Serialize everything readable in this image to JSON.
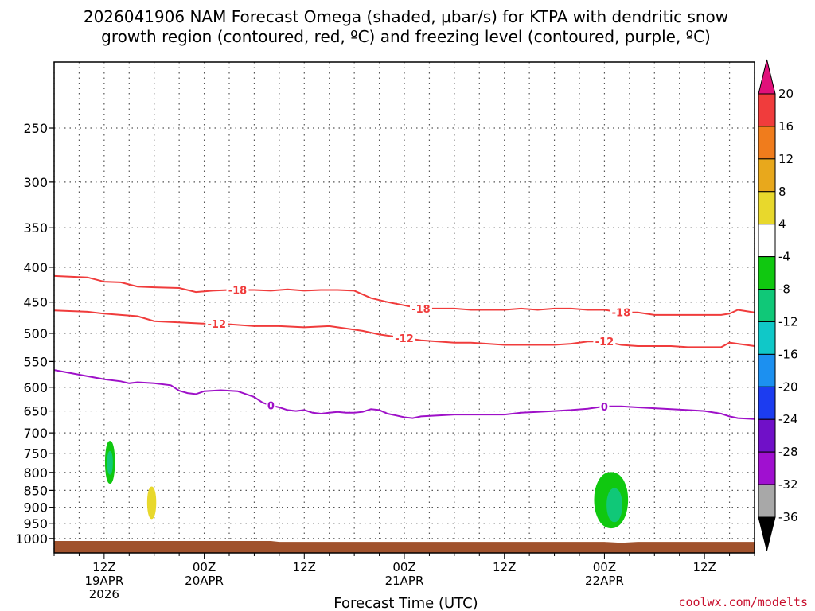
{
  "title": {
    "line1": "2026041906 NAM Forecast Omega (shaded, μbar/s) for KTPA with dendritic snow",
    "line2": "growth region (contoured, red, ºC) and freezing level (contoured, purple, ºC)"
  },
  "credit": "coolwx.com/modelts",
  "chart_data": {
    "type": "time-height contour",
    "title": "2026041906 NAM Forecast Omega (shaded, μbar/s) for KTPA with dendritic snow growth region (contoured, red, ºC) and freezing level (contoured, purple, ºC)",
    "xlabel": "Forecast Time (UTC)",
    "ylabel": "",
    "x_unit": "forecast hour from 2026041906",
    "xlim": [
      0,
      84
    ],
    "y_unit": "hPa",
    "ylim": [
      1050,
      200
    ],
    "y_ticks": [
      250,
      300,
      350,
      400,
      450,
      500,
      550,
      600,
      650,
      700,
      750,
      800,
      850,
      900,
      950,
      1000
    ],
    "x_ticks": [
      {
        "hour": 6,
        "lines": [
          "12Z",
          "19APR",
          "2026"
        ]
      },
      {
        "hour": 18,
        "lines": [
          "00Z",
          "20APR"
        ]
      },
      {
        "hour": 30,
        "lines": [
          "12Z"
        ]
      },
      {
        "hour": 42,
        "lines": [
          "00Z",
          "21APR"
        ]
      },
      {
        "hour": 54,
        "lines": [
          "12Z"
        ]
      },
      {
        "hour": 66,
        "lines": [
          "00Z",
          "22APR"
        ]
      },
      {
        "hour": 78,
        "lines": [
          "12Z"
        ]
      }
    ],
    "colorbar": {
      "labels": [
        "20",
        "16",
        "12",
        "8",
        "4",
        "-4",
        "-8",
        "-12",
        "-16",
        "-20",
        "-24",
        "-28",
        "-32",
        "-36"
      ],
      "bins": [
        {
          "range": "16 to 20",
          "color": "#f03c3c"
        },
        {
          "range": "12 to 16",
          "color": "#f07c1c"
        },
        {
          "range": "8 to 12",
          "color": "#e8a81c"
        },
        {
          "range": "4 to 8",
          "color": "#e8d82c"
        },
        {
          "range": "-4 to 4",
          "color": "#ffffff"
        },
        {
          "range": "-8 to -4",
          "color": "#10c810"
        },
        {
          "range": "-12 to -8",
          "color": "#10c878"
        },
        {
          "range": "-16 to -12",
          "color": "#10c8c8"
        },
        {
          "range": "-20 to -16",
          "color": "#1c90f0"
        },
        {
          "range": "-24 to -20",
          "color": "#1c3cf0"
        },
        {
          "range": "-28 to -24",
          "color": "#7010c8"
        },
        {
          "range": "-32 to -28",
          "color": "#a010d0"
        },
        {
          "range": "-36 to -32",
          "color": "#a8a8a8"
        }
      ],
      "top_triangle_color": "#e0107a",
      "bottom_triangle_color": "#000000"
    },
    "series": [
      {
        "name": "-18 ºC isotherm",
        "color": "#f03c3c",
        "label": "-18",
        "label_hours": [
          22,
          44,
          68
        ],
        "points": [
          [
            0,
            412
          ],
          [
            4,
            414
          ],
          [
            6,
            420
          ],
          [
            8,
            421
          ],
          [
            10,
            427
          ],
          [
            12,
            428
          ],
          [
            15,
            429
          ],
          [
            17,
            435
          ],
          [
            19,
            433
          ],
          [
            21,
            432
          ],
          [
            24,
            432
          ],
          [
            26,
            433
          ],
          [
            28,
            431
          ],
          [
            30,
            433
          ],
          [
            32,
            432
          ],
          [
            34,
            432
          ],
          [
            36,
            433
          ],
          [
            38,
            444
          ],
          [
            40,
            450
          ],
          [
            42,
            455
          ],
          [
            44,
            460
          ],
          [
            46,
            460
          ],
          [
            48,
            460
          ],
          [
            50,
            462
          ],
          [
            52,
            462
          ],
          [
            54,
            462
          ],
          [
            56,
            460
          ],
          [
            58,
            462
          ],
          [
            60,
            460
          ],
          [
            62,
            460
          ],
          [
            64,
            462
          ],
          [
            66,
            462
          ],
          [
            68,
            466
          ],
          [
            70,
            466
          ],
          [
            72,
            470
          ],
          [
            74,
            470
          ],
          [
            76,
            470
          ],
          [
            78,
            470
          ],
          [
            80,
            470
          ],
          [
            81,
            468
          ],
          [
            82,
            462
          ],
          [
            84,
            466
          ]
        ]
      },
      {
        "name": "-12 ºC isotherm",
        "color": "#f03c3c",
        "label": "-12",
        "label_hours": [
          19.5,
          42,
          66
        ],
        "points": [
          [
            0,
            463
          ],
          [
            4,
            465
          ],
          [
            6,
            468
          ],
          [
            8,
            470
          ],
          [
            10,
            472
          ],
          [
            12,
            480
          ],
          [
            15,
            482
          ],
          [
            18,
            484
          ],
          [
            21,
            485
          ],
          [
            24,
            488
          ],
          [
            27,
            488
          ],
          [
            30,
            490
          ],
          [
            33,
            488
          ],
          [
            35,
            492
          ],
          [
            37,
            496
          ],
          [
            39,
            502
          ],
          [
            41,
            506
          ],
          [
            42,
            508
          ],
          [
            44,
            512
          ],
          [
            46,
            514
          ],
          [
            48,
            516
          ],
          [
            50,
            516
          ],
          [
            52,
            518
          ],
          [
            54,
            520
          ],
          [
            56,
            520
          ],
          [
            58,
            520
          ],
          [
            60,
            520
          ],
          [
            62,
            518
          ],
          [
            64,
            514
          ],
          [
            66,
            514
          ],
          [
            68,
            520
          ],
          [
            70,
            522
          ],
          [
            72,
            522
          ],
          [
            74,
            522
          ],
          [
            76,
            524
          ],
          [
            78,
            524
          ],
          [
            80,
            524
          ],
          [
            81,
            516
          ],
          [
            82,
            518
          ],
          [
            84,
            522
          ]
        ]
      },
      {
        "name": "0 ºC freezing level",
        "color": "#9e10c8",
        "label": "0",
        "label_hours": [
          26,
          66
        ],
        "points": [
          [
            0,
            566
          ],
          [
            2,
            572
          ],
          [
            4,
            578
          ],
          [
            6,
            584
          ],
          [
            8,
            588
          ],
          [
            9,
            592
          ],
          [
            10,
            590
          ],
          [
            12,
            592
          ],
          [
            14,
            596
          ],
          [
            15,
            607
          ],
          [
            16,
            612
          ],
          [
            17,
            614
          ],
          [
            18,
            608
          ],
          [
            20,
            606
          ],
          [
            22,
            608
          ],
          [
            24,
            620
          ],
          [
            25,
            632
          ],
          [
            26,
            638
          ],
          [
            27,
            642
          ],
          [
            28,
            648
          ],
          [
            29,
            650
          ],
          [
            30,
            648
          ],
          [
            31,
            654
          ],
          [
            32,
            656
          ],
          [
            33,
            654
          ],
          [
            34,
            652
          ],
          [
            35,
            654
          ],
          [
            36,
            654
          ],
          [
            37,
            652
          ],
          [
            38,
            646
          ],
          [
            39,
            648
          ],
          [
            40,
            656
          ],
          [
            41,
            660
          ],
          [
            42,
            664
          ],
          [
            43,
            666
          ],
          [
            44,
            662
          ],
          [
            46,
            660
          ],
          [
            48,
            658
          ],
          [
            50,
            658
          ],
          [
            52,
            658
          ],
          [
            54,
            658
          ],
          [
            56,
            654
          ],
          [
            58,
            652
          ],
          [
            60,
            650
          ],
          [
            62,
            648
          ],
          [
            64,
            645
          ],
          [
            66,
            640
          ],
          [
            68,
            640
          ],
          [
            70,
            642
          ],
          [
            72,
            644
          ],
          [
            74,
            646
          ],
          [
            76,
            648
          ],
          [
            78,
            650
          ],
          [
            80,
            656
          ],
          [
            81,
            662
          ],
          [
            82,
            666
          ],
          [
            84,
            668
          ]
        ]
      }
    ],
    "omega_regions": [
      {
        "name": "omega -8 to -4 near 19APR 12Z",
        "color": "#10c810",
        "center_hour": 6.7,
        "center_hPa": 765,
        "half_width_hours": 0.55,
        "top_hPa": 720,
        "bottom_hPa": 830
      },
      {
        "name": "omega -12 to -8 core near 19APR 12Z",
        "color": "#10c878",
        "center_hour": 6.7,
        "center_hPa": 775,
        "half_width_hours": 0.3,
        "top_hPa": 745,
        "bottom_hPa": 805
      },
      {
        "name": "omega 4 to 8 near 19APR 17Z",
        "color": "#e8d82c",
        "center_hour": 11.7,
        "center_hPa": 885,
        "half_width_hours": 0.5,
        "top_hPa": 840,
        "bottom_hPa": 935
      },
      {
        "name": "omega -8 to -4 near 22APR 00Z",
        "color": "#10c810",
        "center_hour": 66.8,
        "center_hPa": 880,
        "half_width_hours": 2.0,
        "top_hPa": 800,
        "bottom_hPa": 965
      },
      {
        "name": "omega -12 to -8 core near 22APR 00Z",
        "color": "#10c878",
        "center_hour": 67.2,
        "center_hPa": 890,
        "half_width_hours": 0.9,
        "top_hPa": 845,
        "bottom_hPa": 945
      }
    ],
    "terrain": {
      "color": "#a0522d",
      "surface_hPa": [
        [
          0,
          1010
        ],
        [
          26,
          1010
        ],
        [
          27,
          1013
        ],
        [
          66,
          1013
        ],
        [
          68,
          1016
        ],
        [
          70,
          1013
        ],
        [
          84,
          1013
        ]
      ]
    }
  }
}
